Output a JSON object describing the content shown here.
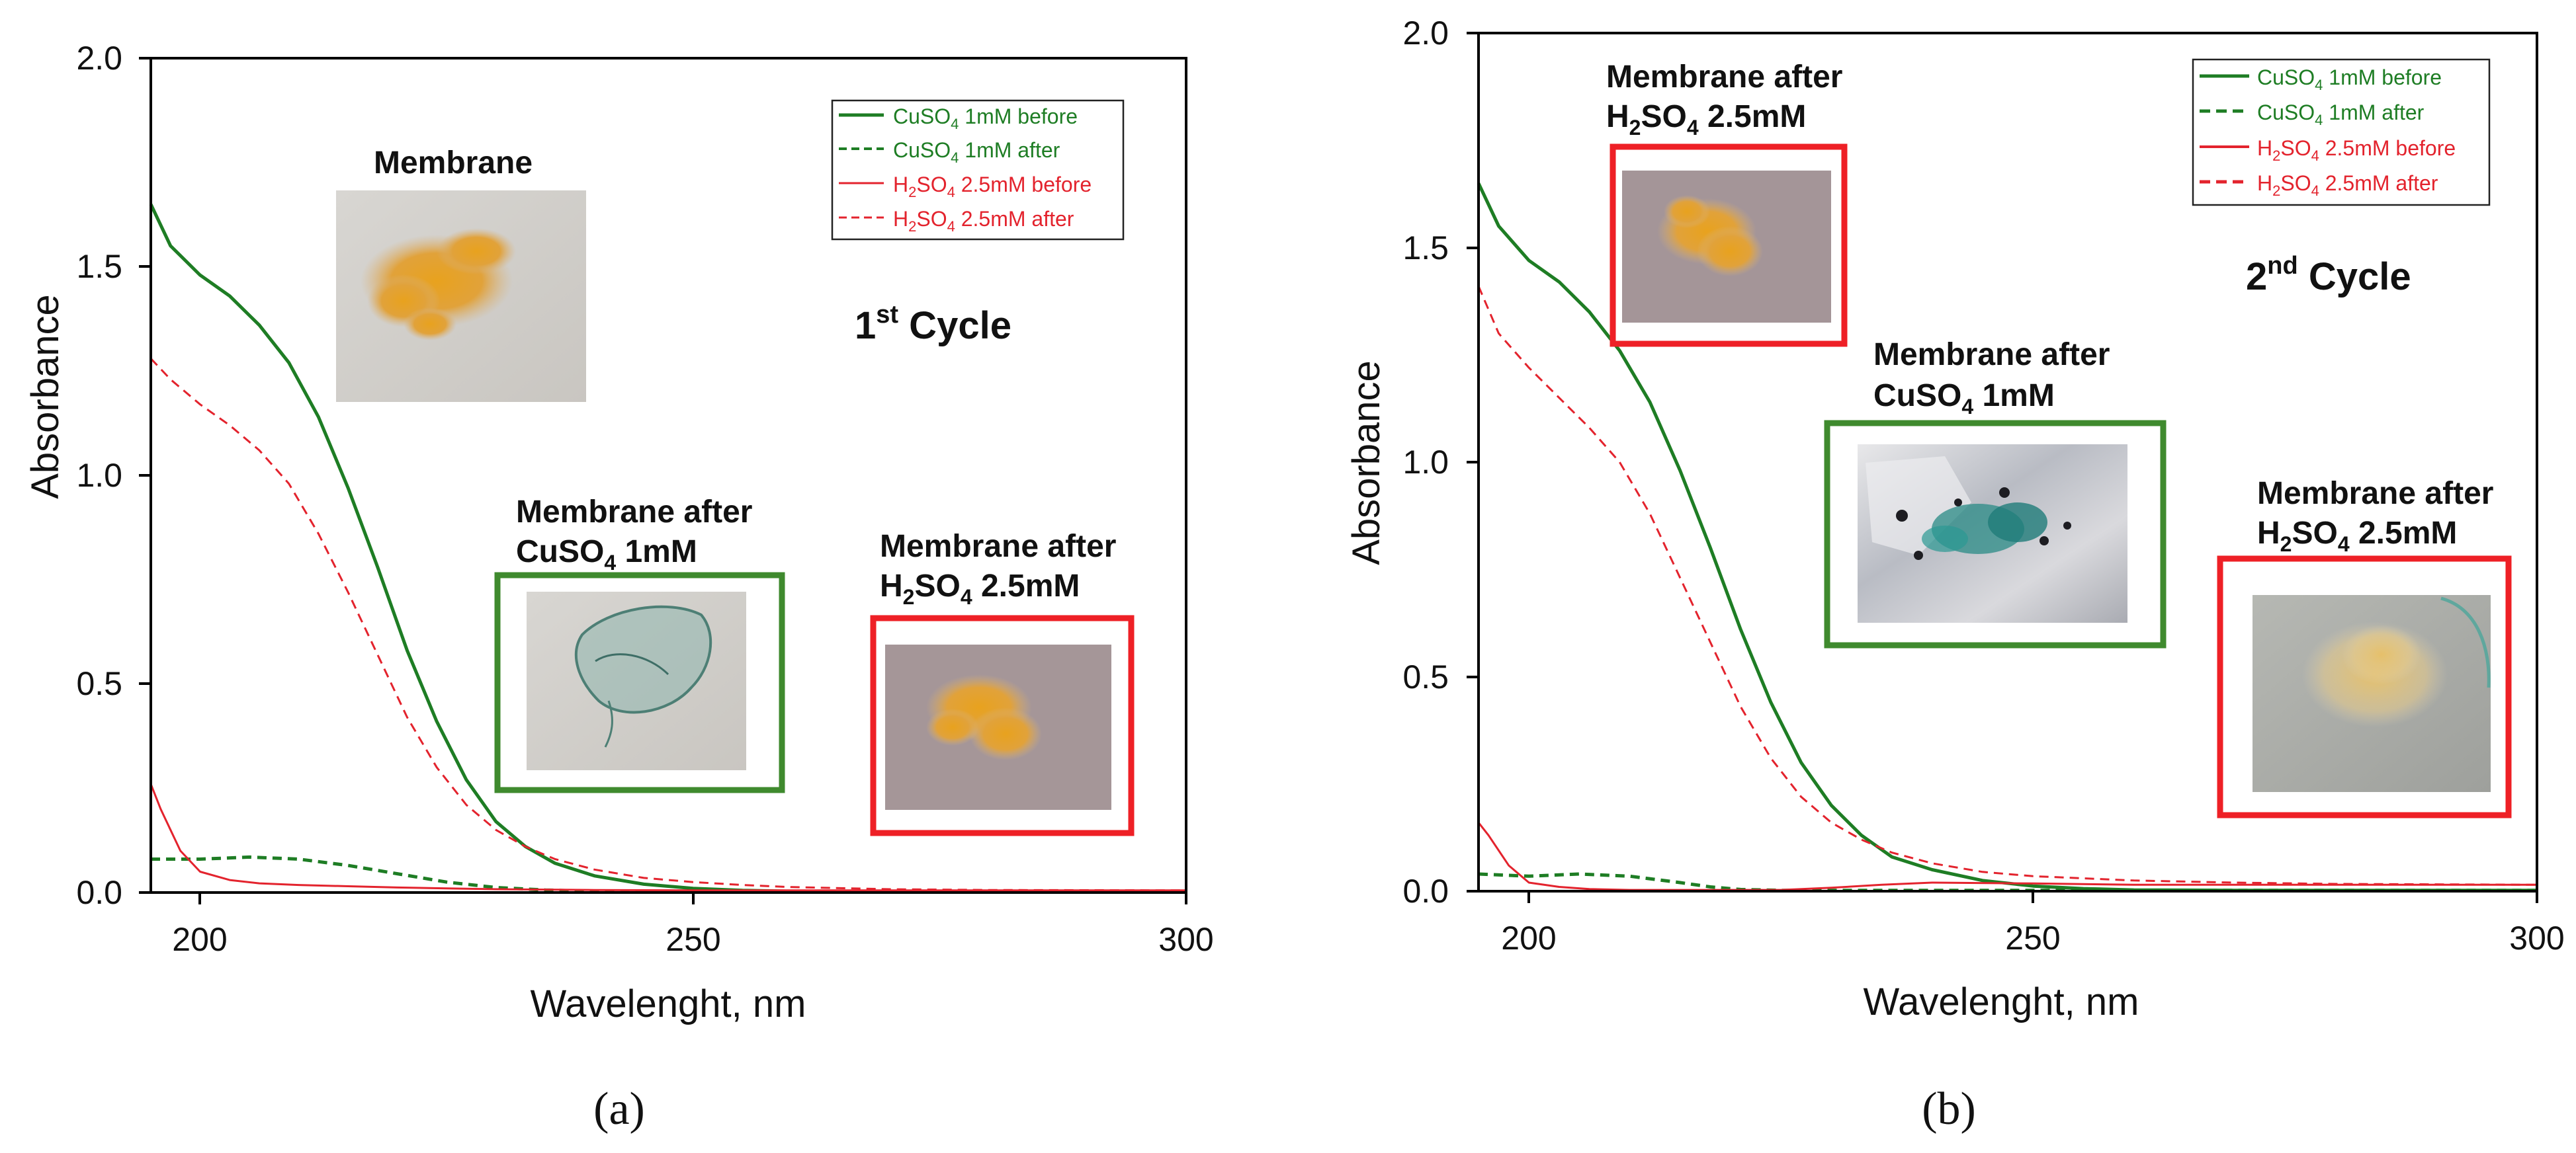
{
  "figure": {
    "panel_labels": [
      "(a)",
      "(b)"
    ]
  },
  "chart_data": [
    {
      "type": "line",
      "panel": "(a)",
      "xlabel": "Wavelenght, nm",
      "ylabel": "Absorbance",
      "xlim": [
        195,
        300
      ],
      "ylim": [
        0,
        2.0
      ],
      "xticks": [
        200,
        250,
        300
      ],
      "yticks": [
        0.0,
        0.5,
        1.0,
        1.5,
        2.0
      ],
      "grid": false,
      "legend_position": "top-right",
      "cycle_label": {
        "main": "1",
        "sup": "st",
        "rest": " Cycle"
      },
      "series": [
        {
          "name": "CuSO4 1mM before",
          "name_parts": [
            "CuSO",
            "4",
            " 1mM before"
          ],
          "color": "#1e7d24",
          "dash": "solid",
          "x": [
            195,
            197,
            200,
            203,
            206,
            209,
            212,
            215,
            218,
            221,
            224,
            227,
            230,
            233,
            236,
            240,
            245,
            250,
            255,
            260,
            270,
            280,
            300
          ],
          "y": [
            1.65,
            1.55,
            1.48,
            1.43,
            1.36,
            1.27,
            1.14,
            0.97,
            0.78,
            0.58,
            0.41,
            0.27,
            0.17,
            0.11,
            0.07,
            0.04,
            0.02,
            0.01,
            0.005,
            0.003,
            0.002,
            0.002,
            0.002
          ]
        },
        {
          "name": "CuSO4 1mM after",
          "name_parts": [
            "CuSO",
            "4",
            " 1mM after"
          ],
          "color": "#1e7d24",
          "dash": "dashed",
          "x": [
            195,
            200,
            205,
            210,
            215,
            220,
            225,
            230,
            235,
            240,
            250,
            260,
            300
          ],
          "y": [
            0.08,
            0.08,
            0.085,
            0.08,
            0.065,
            0.045,
            0.025,
            0.012,
            0.006,
            0.003,
            0.002,
            0.002,
            0.002
          ]
        },
        {
          "name": "H2SO4 2.5mM before",
          "name_parts": [
            "H",
            "2",
            "SO",
            "4",
            " 2.5mM before"
          ],
          "color": "#e3232d",
          "dash": "solid",
          "x": [
            195,
            196,
            198,
            200,
            203,
            206,
            210,
            215,
            220,
            225,
            230,
            240,
            250,
            300
          ],
          "y": [
            0.26,
            0.2,
            0.1,
            0.05,
            0.03,
            0.022,
            0.018,
            0.015,
            0.012,
            0.01,
            0.008,
            0.006,
            0.005,
            0.005
          ]
        },
        {
          "name": "H2SO4 2.5mM after",
          "name_parts": [
            "H",
            "2",
            "SO",
            "4",
            " 2.5mM after"
          ],
          "color": "#e3232d",
          "dash": "dashed",
          "x": [
            195,
            197,
            200,
            203,
            206,
            209,
            212,
            215,
            218,
            221,
            224,
            227,
            230,
            233,
            236,
            240,
            245,
            250,
            255,
            260,
            270,
            280,
            300
          ],
          "y": [
            1.28,
            1.23,
            1.17,
            1.12,
            1.06,
            0.98,
            0.86,
            0.72,
            0.57,
            0.42,
            0.3,
            0.21,
            0.15,
            0.11,
            0.08,
            0.055,
            0.035,
            0.025,
            0.018,
            0.013,
            0.008,
            0.006,
            0.005
          ]
        }
      ],
      "insets": [
        {
          "title_lines": [
            [
              "Membrane"
            ]
          ],
          "frame": "none",
          "photo": "membrane-photo"
        },
        {
          "title_lines": [
            [
              "Membrane after"
            ],
            [
              "CuSO",
              "4",
              " 1mM"
            ]
          ],
          "frame": "green",
          "photo": "membrane-after-cuso4-photo"
        },
        {
          "title_lines": [
            [
              "Membrane after"
            ],
            [
              "H",
              "2",
              "SO",
              "4",
              " 2.5mM"
            ]
          ],
          "frame": "red",
          "photo": "membrane-after-h2so4-photo"
        }
      ]
    },
    {
      "type": "line",
      "panel": "(b)",
      "xlabel": "Wavelenght, nm",
      "ylabel": "Absorbance",
      "xlim": [
        195,
        300
      ],
      "ylim": [
        0,
        2.0
      ],
      "xticks": [
        200,
        250,
        300
      ],
      "yticks": [
        0.0,
        0.5,
        1.0,
        1.5,
        2.0
      ],
      "grid": false,
      "legend_position": "top-right",
      "cycle_label": {
        "main": "2",
        "sup": "nd",
        "rest": " Cycle"
      },
      "series": [
        {
          "name": "CuSO4 1mM before",
          "name_parts": [
            "CuSO",
            "4",
            " 1mM before"
          ],
          "color": "#1e7d24",
          "dash": "solid",
          "x": [
            195,
            197,
            200,
            203,
            206,
            209,
            212,
            215,
            218,
            221,
            224,
            227,
            230,
            233,
            236,
            240,
            245,
            250,
            255,
            260,
            270,
            280,
            300
          ],
          "y": [
            1.65,
            1.55,
            1.47,
            1.42,
            1.35,
            1.26,
            1.14,
            0.98,
            0.8,
            0.61,
            0.44,
            0.3,
            0.2,
            0.13,
            0.08,
            0.05,
            0.025,
            0.012,
            0.006,
            0.003,
            0.002,
            0.002,
            0.002
          ]
        },
        {
          "name": "CuSO4 1mM after",
          "name_parts": [
            "CuSO",
            "4",
            " 1mM after"
          ],
          "color": "#1e7d24",
          "dash": "dashed",
          "x": [
            195,
            200,
            205,
            210,
            215,
            218,
            221,
            225,
            230,
            300
          ],
          "y": [
            0.04,
            0.035,
            0.04,
            0.035,
            0.02,
            0.01,
            0.004,
            0.002,
            0.002,
            0.002
          ]
        },
        {
          "name": "H2SO4 2.5mM before",
          "name_parts": [
            "H",
            "2",
            "SO",
            "4",
            " 2.5mM before"
          ],
          "color": "#e3232d",
          "dash": "solid",
          "x": [
            195,
            196,
            198,
            200,
            203,
            206,
            210,
            215,
            220,
            225,
            230,
            235,
            240,
            250,
            260,
            270,
            280,
            300
          ],
          "y": [
            0.16,
            0.13,
            0.06,
            0.02,
            0.01,
            0.005,
            0.003,
            0.003,
            0.003,
            0.003,
            0.008,
            0.015,
            0.02,
            0.018,
            0.015,
            0.015,
            0.015,
            0.015
          ]
        },
        {
          "name": "H2SO4 2.5mM after",
          "name_parts": [
            "H",
            "2",
            "SO",
            "4",
            " 2.5mM after"
          ],
          "color": "#e3232d",
          "dash": "dashed",
          "x": [
            195,
            197,
            200,
            203,
            206,
            209,
            212,
            215,
            218,
            221,
            224,
            227,
            230,
            233,
            236,
            240,
            245,
            250,
            255,
            260,
            270,
            280,
            300
          ],
          "y": [
            1.41,
            1.3,
            1.22,
            1.15,
            1.08,
            1.0,
            0.88,
            0.73,
            0.58,
            0.43,
            0.31,
            0.22,
            0.16,
            0.12,
            0.09,
            0.065,
            0.045,
            0.035,
            0.03,
            0.025,
            0.02,
            0.017,
            0.015
          ]
        }
      ],
      "insets": [
        {
          "title_lines": [
            [
              "Membrane after"
            ],
            [
              "H",
              "2",
              "SO",
              "4",
              " 2.5mM"
            ]
          ],
          "frame": "red",
          "photo": "membrane-after-h2so4-photo"
        },
        {
          "title_lines": [
            [
              "Membrane after"
            ],
            [
              "CuSO",
              "4",
              " 1mM"
            ]
          ],
          "frame": "green",
          "photo": "membrane-after-cuso4-photo"
        },
        {
          "title_lines": [
            [
              "Membrane after"
            ],
            [
              "H",
              "2",
              "SO",
              "4",
              " 2.5mM"
            ]
          ],
          "frame": "red",
          "photo": "membrane-after-h2so4-photo"
        }
      ]
    }
  ]
}
